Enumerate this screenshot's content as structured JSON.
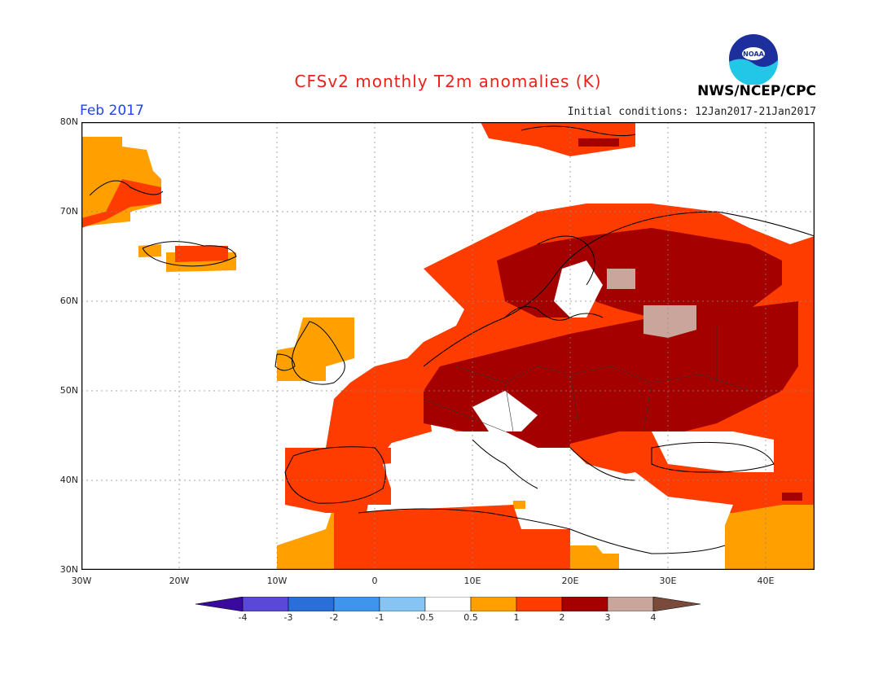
{
  "title": "CFSv2 monthly T2m anomalies (K)",
  "month": "Feb 2017",
  "agency": "NWS/NCEP/CPC",
  "logo_text": "NOAA",
  "initial_conditions": "Initial conditions: 12Jan2017-21Jan2017",
  "lat_labels": [
    "80N",
    "70N",
    "60N",
    "50N",
    "40N",
    "30N"
  ],
  "lon_labels": [
    "30W",
    "20W",
    "10W",
    "0",
    "10E",
    "20E",
    "30E",
    "40E"
  ],
  "colorbar": {
    "levels": [
      "-4",
      "-3",
      "-2",
      "-1",
      "-0.5",
      "0.5",
      "1",
      "2",
      "3",
      "4"
    ],
    "colors": [
      "#3a0a9e",
      "#5a48d6",
      "#2a6fd8",
      "#3f95ec",
      "#86c4f4",
      "#ffffff",
      "#ff9f00",
      "#ff3c00",
      "#a50000",
      "#c9a59c",
      "#7a4a3a"
    ]
  },
  "map": {
    "extent": {
      "lon": [
        -30,
        45
      ],
      "lat": [
        30,
        80
      ]
    },
    "anomaly_regions": [
      {
        "category": "0.5-1",
        "color": "#ff9f00",
        "desc": "Greenland coast"
      },
      {
        "category": "1-2",
        "color": "#ff3c00",
        "desc": "Western/Southern Europe, Scandinavia coast"
      },
      {
        "category": "2-3",
        "color": "#a50000",
        "desc": "Central & Eastern Europe, interior Scandinavia"
      },
      {
        "category": "3-4",
        "color": "#c9a59c",
        "desc": "Finland / western Russia spots"
      }
    ]
  }
}
